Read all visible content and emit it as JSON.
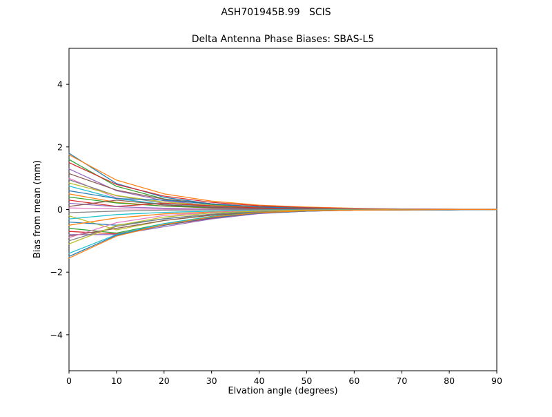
{
  "figure": {
    "background": "#ffffff",
    "title": "ASH701945B.99   SCIS"
  },
  "chart_data": {
    "type": "line",
    "title": "ASH701945B.99   SCIS",
    "subtitle": "Delta Antenna Phase Biases: SBAS-L5",
    "xlabel": "Elvation angle (degrees)",
    "ylabel": "Bias from mean (mm)",
    "xlim": [
      0,
      90
    ],
    "ylim": [
      -5.15,
      5.15
    ],
    "xticks": [
      0,
      10,
      20,
      30,
      40,
      50,
      60,
      70,
      80,
      90
    ],
    "xticklabels": [
      "0",
      "10",
      "20",
      "30",
      "40",
      "50",
      "60",
      "70",
      "80",
      "90"
    ],
    "yticks": [
      -4,
      -2,
      0,
      2,
      4
    ],
    "yticklabels": [
      "−4",
      "−2",
      "0",
      "2",
      "4"
    ],
    "grid": false,
    "legend": "none",
    "description": "Many colored bias curves, one per satellite pass, spread between about -1.55 mm and +1.8 mm at 0 degrees elevation and converging to ~0 mm above ~45 degrees.",
    "x": [
      0,
      10,
      20,
      30,
      40,
      50,
      60,
      70,
      80,
      90
    ],
    "series": [
      {
        "name": "line-01",
        "color": "#1f77b4",
        "values": [
          1.8,
          0.83,
          0.39,
          0.18,
          0.08,
          0.03,
          0.02,
          0.01,
          0.0,
          0.0
        ]
      },
      {
        "name": "line-02",
        "color": "#ff7f0e",
        "values": [
          1.75,
          0.94,
          0.5,
          0.27,
          0.14,
          0.08,
          0.04,
          0.02,
          0.01,
          0.01
        ]
      },
      {
        "name": "line-03",
        "color": "#2ca02c",
        "values": [
          1.6,
          0.74,
          0.34,
          0.16,
          0.07,
          0.03,
          0.01,
          0.01,
          0.0,
          0.0
        ]
      },
      {
        "name": "line-04",
        "color": "#d62728",
        "values": [
          1.5,
          0.8,
          0.43,
          0.23,
          0.12,
          0.06,
          0.03,
          0.02,
          0.01,
          0.0
        ]
      },
      {
        "name": "line-05",
        "color": "#9467bd",
        "values": [
          1.3,
          0.6,
          0.28,
          0.13,
          0.06,
          0.03,
          0.01,
          0.0,
          0.0,
          0.0
        ]
      },
      {
        "name": "line-06",
        "color": "#8c564b",
        "values": [
          1.15,
          0.62,
          0.33,
          0.18,
          0.09,
          0.05,
          0.02,
          0.01,
          0.01,
          0.0
        ]
      },
      {
        "name": "line-07",
        "color": "#e377c2",
        "values": [
          1.0,
          0.37,
          0.14,
          0.05,
          0.02,
          0.01,
          0.0,
          0.0,
          0.0,
          0.0
        ]
      },
      {
        "name": "line-08",
        "color": "#7f7f7f",
        "values": [
          0.95,
          0.44,
          0.2,
          0.09,
          0.04,
          0.02,
          0.01,
          0.0,
          0.0,
          0.0
        ]
      },
      {
        "name": "line-09",
        "color": "#bcbd22",
        "values": [
          0.85,
          0.45,
          0.24,
          0.13,
          0.07,
          0.03,
          0.02,
          0.01,
          0.0,
          0.0
        ]
      },
      {
        "name": "line-10",
        "color": "#17becf",
        "values": [
          0.75,
          0.35,
          0.16,
          0.07,
          0.03,
          0.02,
          0.01,
          0.0,
          0.0,
          0.0
        ]
      },
      {
        "name": "line-11",
        "color": "#1f77b4",
        "values": [
          0.6,
          0.35,
          0.3,
          0.18,
          0.08,
          0.03,
          0.01,
          0.01,
          0.0,
          0.0
        ]
      },
      {
        "name": "line-12",
        "color": "#ff7f0e",
        "values": [
          0.5,
          0.23,
          0.11,
          0.05,
          0.02,
          0.01,
          0.0,
          0.0,
          0.0,
          0.0
        ]
      },
      {
        "name": "line-13",
        "color": "#2ca02c",
        "values": [
          0.4,
          0.21,
          0.11,
          0.06,
          0.03,
          0.01,
          0.01,
          0.0,
          0.0,
          0.0
        ]
      },
      {
        "name": "line-14",
        "color": "#d62728",
        "values": [
          0.3,
          0.1,
          0.2,
          0.12,
          0.05,
          0.02,
          0.01,
          0.0,
          0.0,
          0.0
        ]
      },
      {
        "name": "line-15",
        "color": "#9467bd",
        "values": [
          0.2,
          0.09,
          0.04,
          0.02,
          0.01,
          0.0,
          0.0,
          0.0,
          0.0,
          0.0
        ]
      },
      {
        "name": "line-16",
        "color": "#8c564b",
        "values": [
          0.1,
          0.3,
          0.15,
          0.07,
          0.03,
          0.01,
          0.01,
          0.0,
          0.0,
          0.0
        ]
      },
      {
        "name": "line-17",
        "color": "#e377c2",
        "values": [
          0.05,
          0.02,
          0.01,
          0.0,
          0.0,
          0.0,
          0.01,
          0.01,
          0.01,
          0.01
        ]
      },
      {
        "name": "line-18",
        "color": "#7f7f7f",
        "values": [
          -0.1,
          -0.05,
          -0.02,
          -0.01,
          0.0,
          0.0,
          0.0,
          0.0,
          0.0,
          0.0
        ]
      },
      {
        "name": "line-19",
        "color": "#bcbd22",
        "values": [
          -0.2,
          -0.65,
          -0.35,
          -0.18,
          -0.08,
          -0.03,
          -0.01,
          -0.01,
          0.0,
          0.0
        ]
      },
      {
        "name": "line-20",
        "color": "#17becf",
        "values": [
          -0.3,
          -0.16,
          -0.09,
          -0.05,
          -0.02,
          -0.01,
          0.0,
          0.0,
          0.0,
          0.0
        ]
      },
      {
        "name": "line-21",
        "color": "#1f77b4",
        "values": [
          -0.4,
          -0.5,
          -0.3,
          -0.15,
          -0.06,
          -0.02,
          -0.01,
          0.0,
          0.0,
          0.0
        ]
      },
      {
        "name": "line-22",
        "color": "#ff7f0e",
        "values": [
          -0.5,
          -0.27,
          -0.14,
          -0.08,
          -0.04,
          -0.02,
          -0.01,
          -0.01,
          0.0,
          0.0
        ]
      },
      {
        "name": "line-23",
        "color": "#2ca02c",
        "values": [
          -0.6,
          -0.75,
          -0.45,
          -0.22,
          -0.09,
          -0.04,
          -0.02,
          -0.01,
          -0.01,
          0.0
        ]
      },
      {
        "name": "line-24",
        "color": "#d62728",
        "values": [
          -0.7,
          -0.78,
          -0.5,
          -0.28,
          -0.12,
          -0.05,
          -0.02,
          -0.01,
          0.0,
          0.0
        ]
      },
      {
        "name": "line-25",
        "color": "#9467bd",
        "values": [
          -0.8,
          -0.8,
          -0.55,
          -0.3,
          -0.13,
          -0.05,
          -0.02,
          -0.01,
          -0.01,
          0.0
        ]
      },
      {
        "name": "line-26",
        "color": "#8c564b",
        "values": [
          -0.85,
          -0.6,
          -0.35,
          -0.18,
          -0.08,
          -0.03,
          -0.01,
          -0.01,
          0.0,
          0.0
        ]
      },
      {
        "name": "line-27",
        "color": "#e377c2",
        "values": [
          -0.9,
          -0.42,
          -0.19,
          -0.09,
          -0.04,
          -0.02,
          -0.01,
          0.0,
          0.0,
          0.0
        ]
      },
      {
        "name": "line-28",
        "color": "#7f7f7f",
        "values": [
          -1.0,
          -0.54,
          -0.29,
          -0.15,
          -0.08,
          -0.04,
          -0.02,
          -0.01,
          -0.01,
          0.0
        ]
      },
      {
        "name": "line-29",
        "color": "#bcbd22",
        "values": [
          -1.1,
          -0.51,
          -0.24,
          -0.11,
          -0.05,
          -0.02,
          -0.01,
          0.0,
          0.0,
          0.0
        ]
      },
      {
        "name": "line-30",
        "color": "#17becf",
        "values": [
          -1.4,
          -0.8,
          -0.45,
          -0.22,
          -0.1,
          -0.04,
          -0.02,
          -0.01,
          0.0,
          0.0
        ]
      },
      {
        "name": "line-31",
        "color": "#1f77b4",
        "values": [
          -1.5,
          -0.82,
          -0.5,
          -0.26,
          -0.11,
          -0.05,
          -0.02,
          -0.01,
          -0.01,
          0.0
        ]
      },
      {
        "name": "line-32",
        "color": "#ff7f0e",
        "values": [
          -1.55,
          -0.85,
          -0.48,
          -0.24,
          -0.1,
          -0.04,
          -0.02,
          -0.01,
          0.0,
          0.0
        ]
      }
    ]
  }
}
